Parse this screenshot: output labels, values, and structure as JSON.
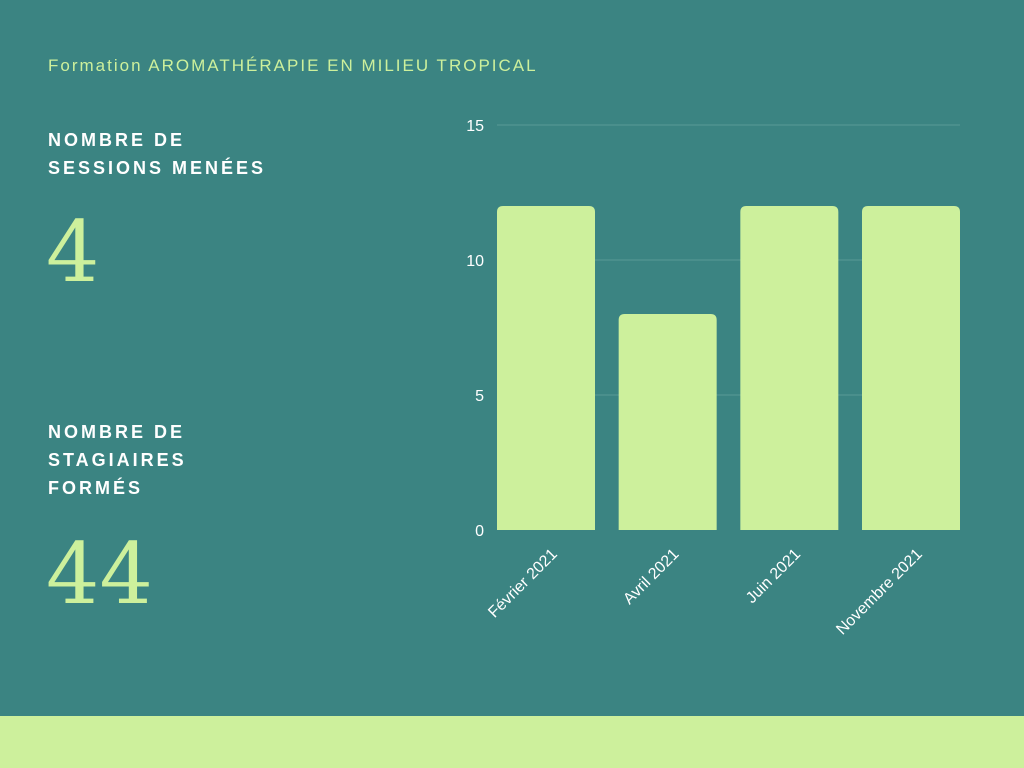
{
  "header": {
    "title": "Formation AROMATHÉRAPIE EN MILIEU TROPICAL"
  },
  "stats": {
    "sessions": {
      "label_lines": [
        "NOMBRE DE",
        "SESSIONS MENÉES"
      ],
      "value": "4"
    },
    "trainees": {
      "label_lines": [
        "NOMBRE DE",
        "STAGIAIRES",
        "FORMÉS"
      ],
      "value": "44"
    }
  },
  "colors": {
    "background": "#3b8482",
    "accent": "#cdf09c",
    "label": "#ffffff"
  },
  "chart_data": {
    "type": "bar",
    "categories": [
      "Février 2021",
      "Avril 2021",
      "Juin 2021",
      "Novembre 2021"
    ],
    "values": [
      12,
      8,
      12,
      12
    ],
    "title": "",
    "xlabel": "",
    "ylabel": "",
    "ylim": [
      0,
      15
    ],
    "yticks": [
      0,
      5,
      10,
      15
    ],
    "grid": true,
    "legend": "none"
  }
}
